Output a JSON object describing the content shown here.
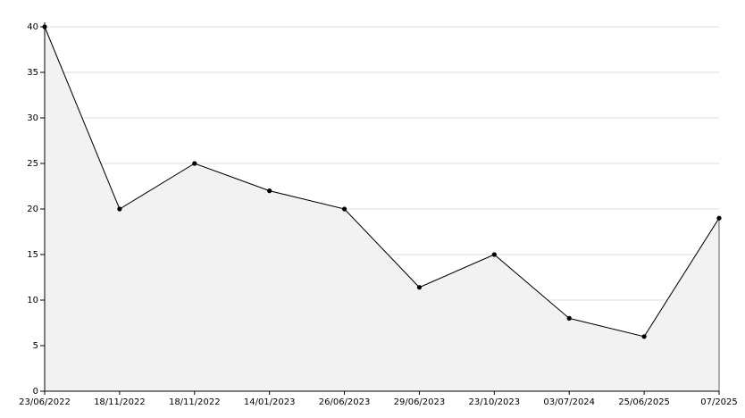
{
  "chart_data": {
    "type": "area",
    "categories": [
      "23/06/2022",
      "18/11/2022",
      "18/11/2022",
      "14/01/2023",
      "26/06/2023",
      "29/06/2023",
      "23/10/2023",
      "03/07/2024",
      "25/06/2025",
      "07/2025"
    ],
    "values": [
      40,
      20,
      25,
      22,
      20,
      11.4,
      15,
      8,
      6,
      19
    ],
    "color": "#000000",
    "fill": "#f2f2f2",
    "ylim": [
      0,
      40
    ],
    "yticks": [
      0,
      5,
      10,
      15,
      20,
      25,
      30,
      35,
      40
    ],
    "grid": true
  }
}
